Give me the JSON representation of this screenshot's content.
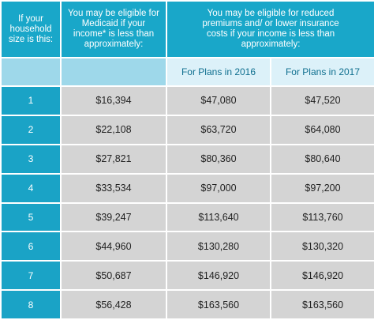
{
  "header": {
    "household": "If your household size is this:",
    "medicaid": "You may be eligible for Medicaid if your income* is less than approximately:",
    "reduced": "You may be eligible for reduced premiums and/ or lower insurance costs if your income is less than approximately:",
    "plans": [
      "For Plans in 2016",
      "For Plans in 2017"
    ]
  },
  "table": {
    "rows": [
      [
        "1",
        "$16,394",
        "$47,080",
        "$47,520"
      ],
      [
        "2",
        "$22,108",
        "$63,720",
        "$64,080"
      ],
      [
        "3",
        "$27,821",
        "$80,360",
        "$80,640"
      ],
      [
        "4",
        "$33,534",
        "$97,000",
        "$97,200"
      ],
      [
        "5",
        "$39,247",
        "$113,640",
        "$113,760"
      ],
      [
        "6",
        "$44,960",
        "$130,280",
        "$130,320"
      ],
      [
        "7",
        "$50,687",
        "$146,920",
        "$146,920"
      ],
      [
        "8",
        "$56,428",
        "$163,560",
        "$163,560"
      ]
    ]
  }
}
